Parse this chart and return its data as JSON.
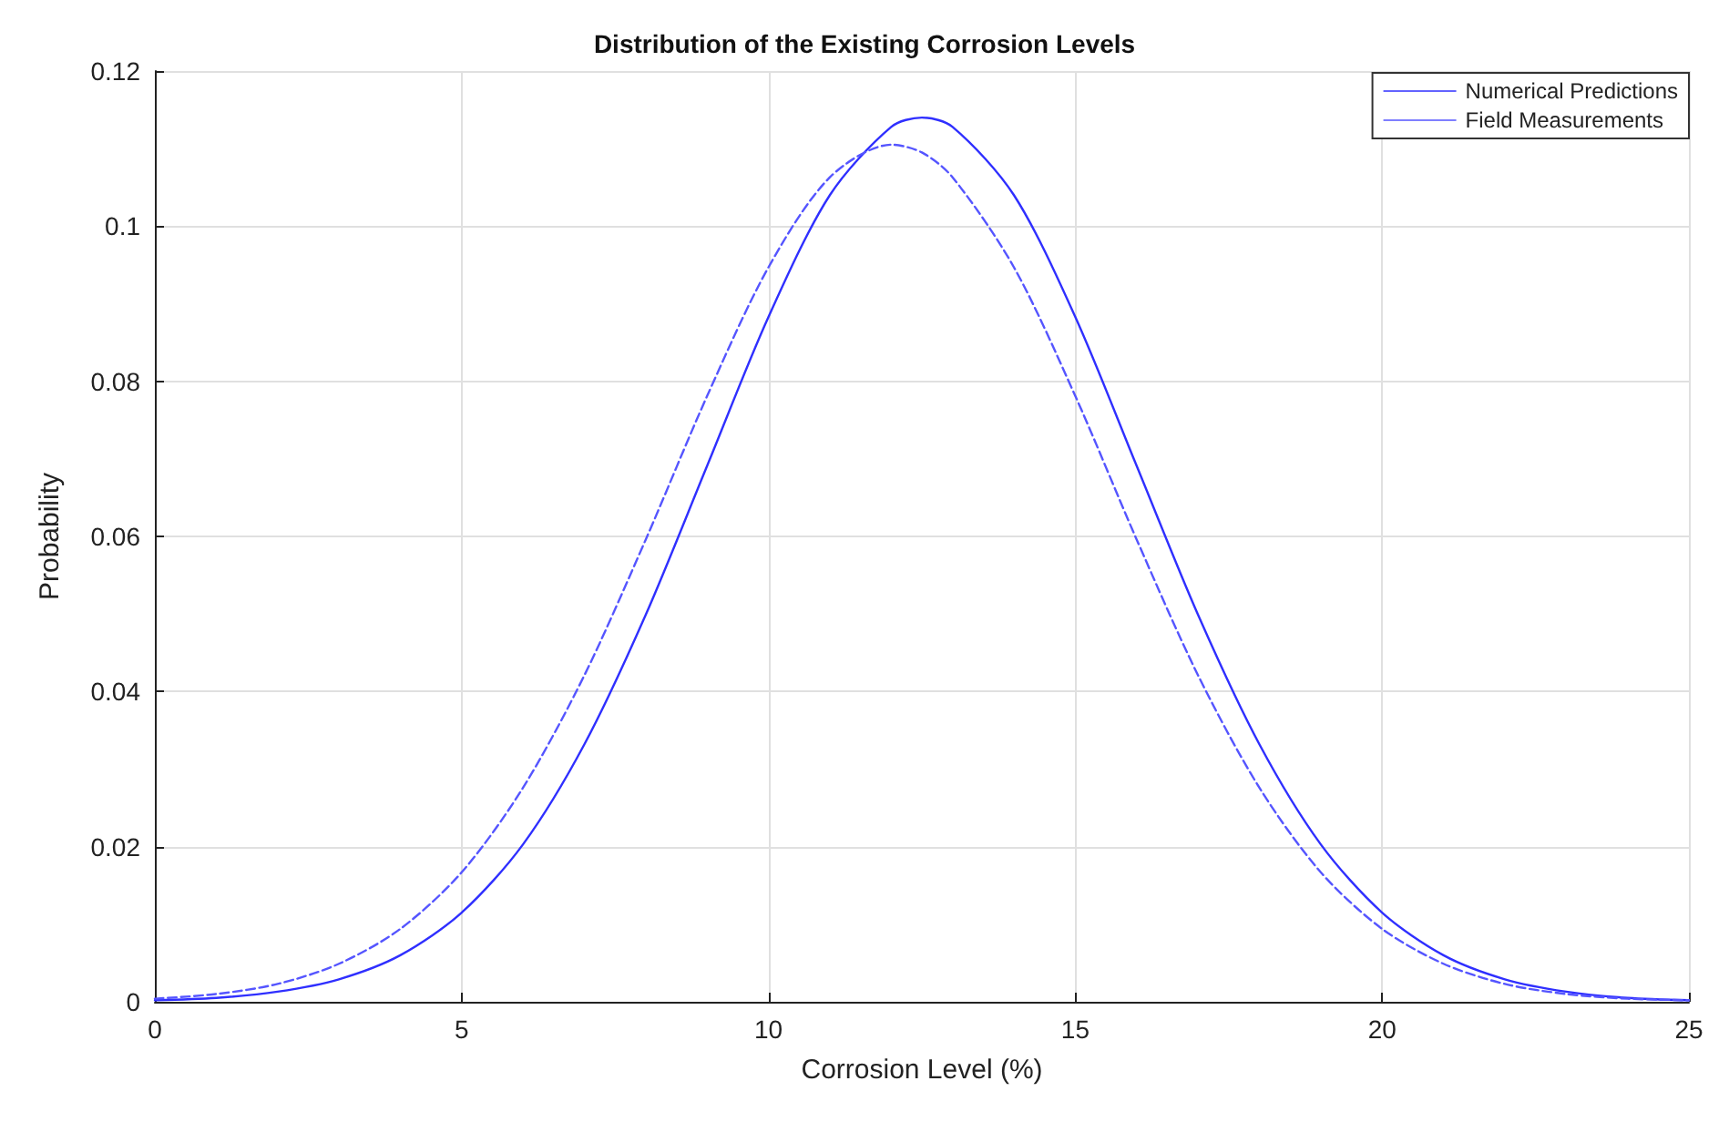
{
  "chart_data": {
    "type": "line",
    "title": "Distribution of the Existing Corrosion Levels",
    "xlabel": "Corrosion Level (%)",
    "ylabel": "Probability",
    "x": [
      0,
      1,
      2,
      3,
      4,
      5,
      6,
      7,
      8,
      9,
      10,
      11,
      12,
      12.5,
      13,
      14,
      15,
      16,
      17,
      18,
      19,
      20,
      21,
      22,
      23,
      24,
      25
    ],
    "series": [
      {
        "name": "Numerical Predictions",
        "color": "#2f2fff",
        "line_style": "solid",
        "values": [
          0.0002,
          0.0005,
          0.0013,
          0.0029,
          0.006,
          0.0115,
          0.0203,
          0.0332,
          0.0499,
          0.0691,
          0.0883,
          0.104,
          0.1128,
          0.114,
          0.1128,
          0.104,
          0.0883,
          0.0691,
          0.0499,
          0.0332,
          0.0203,
          0.0115,
          0.006,
          0.0029,
          0.0013,
          0.0005,
          0.0002
        ]
      },
      {
        "name": "Field Measurements",
        "color": "#5555ff",
        "line_style": "dashed",
        "values": [
          0.0004,
          0.001,
          0.0023,
          0.0049,
          0.0094,
          0.0167,
          0.0276,
          0.0421,
          0.0596,
          0.0781,
          0.0947,
          0.1063,
          0.1105,
          0.1095,
          0.1063,
          0.0947,
          0.0781,
          0.0596,
          0.0421,
          0.0276,
          0.0167,
          0.0094,
          0.0049,
          0.0023,
          0.001,
          0.0004,
          0.0002
        ]
      }
    ],
    "xlim": [
      0,
      25
    ],
    "xticks": [
      0,
      5,
      10,
      15,
      20,
      25
    ],
    "ylim": [
      0,
      0.12
    ],
    "yticks": [
      0,
      0.02,
      0.04,
      0.06,
      0.08,
      0.1,
      0.12
    ],
    "grid": true,
    "legend": "top right",
    "marker": "none"
  }
}
